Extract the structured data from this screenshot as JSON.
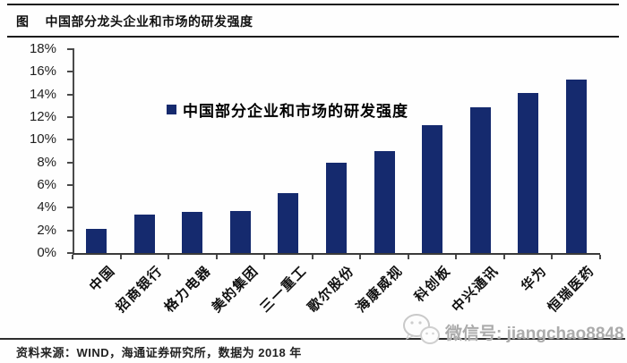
{
  "figure": {
    "tag": "图",
    "title": "中国部分龙头企业和市场的研发强度"
  },
  "chart_data": {
    "type": "bar",
    "legend": "中国部分企业和市场的研发强度",
    "categories": [
      "中国",
      "招商银行",
      "格力电器",
      "美的集团",
      "三一重工",
      "歌尔股份",
      "海康威视",
      "科创板",
      "中兴通讯",
      "华为",
      "恒瑞医药"
    ],
    "values": [
      2.1,
      3.4,
      3.6,
      3.7,
      5.3,
      8.0,
      9.0,
      11.3,
      12.9,
      14.1,
      15.3
    ],
    "unit": "%",
    "ylim": [
      0,
      18
    ],
    "ytick_step": 2,
    "ytick_labels": [
      "0%",
      "2%",
      "4%",
      "6%",
      "8%",
      "10%",
      "12%",
      "14%",
      "16%",
      "18%"
    ],
    "xlabel": "",
    "ylabel": "",
    "grid": false,
    "legend_position": "top-center",
    "bar_color": "#152a6e"
  },
  "footer": {
    "source": "资料来源：WIND，海通证券研究所，数据为 2018 年"
  },
  "watermark": {
    "icon": "wechat-icon",
    "text": "微信号: jiangchao8848"
  }
}
